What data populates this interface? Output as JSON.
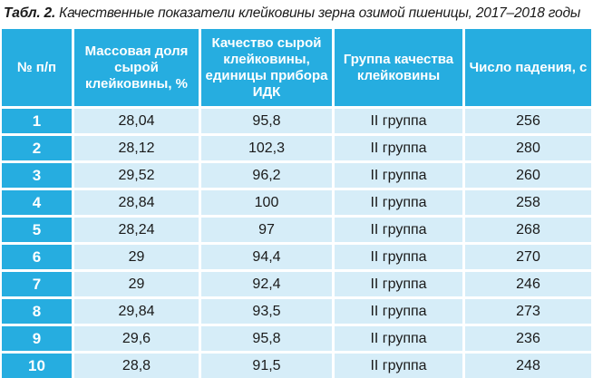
{
  "caption": {
    "label": "Табл. 2.",
    "text": " Качественные показатели клейковины зерна озимой пшеницы, 2017–2018 годы"
  },
  "table": {
    "headers": [
      "№ п/п",
      "Массовая доля сырой клейковины, %",
      "Качество сырой клейковины, единицы прибора ИДК",
      "Группа качества клейковины",
      "Число падения, с"
    ],
    "rows": [
      [
        "1",
        "28,04",
        "95,8",
        "II группа",
        "256"
      ],
      [
        "2",
        "28,12",
        "102,3",
        "II группа",
        "280"
      ],
      [
        "3",
        "29,52",
        "96,2",
        "II группа",
        "260"
      ],
      [
        "4",
        "28,84",
        "100",
        "II группа",
        "258"
      ],
      [
        "5",
        "28,24",
        "97",
        "II группа",
        "268"
      ],
      [
        "6",
        "29",
        "94,4",
        "II группа",
        "270"
      ],
      [
        "7",
        "29",
        "92,4",
        "II группа",
        "246"
      ],
      [
        "8",
        "29,84",
        "93,5",
        "II группа",
        "273"
      ],
      [
        "9",
        "29,6",
        "95,8",
        "II группа",
        "236"
      ],
      [
        "10",
        "28,8",
        "91,5",
        "II группа",
        "248"
      ]
    ]
  },
  "colors": {
    "header_bg": "#26ade0",
    "cell_bg": "#d6edf8"
  }
}
